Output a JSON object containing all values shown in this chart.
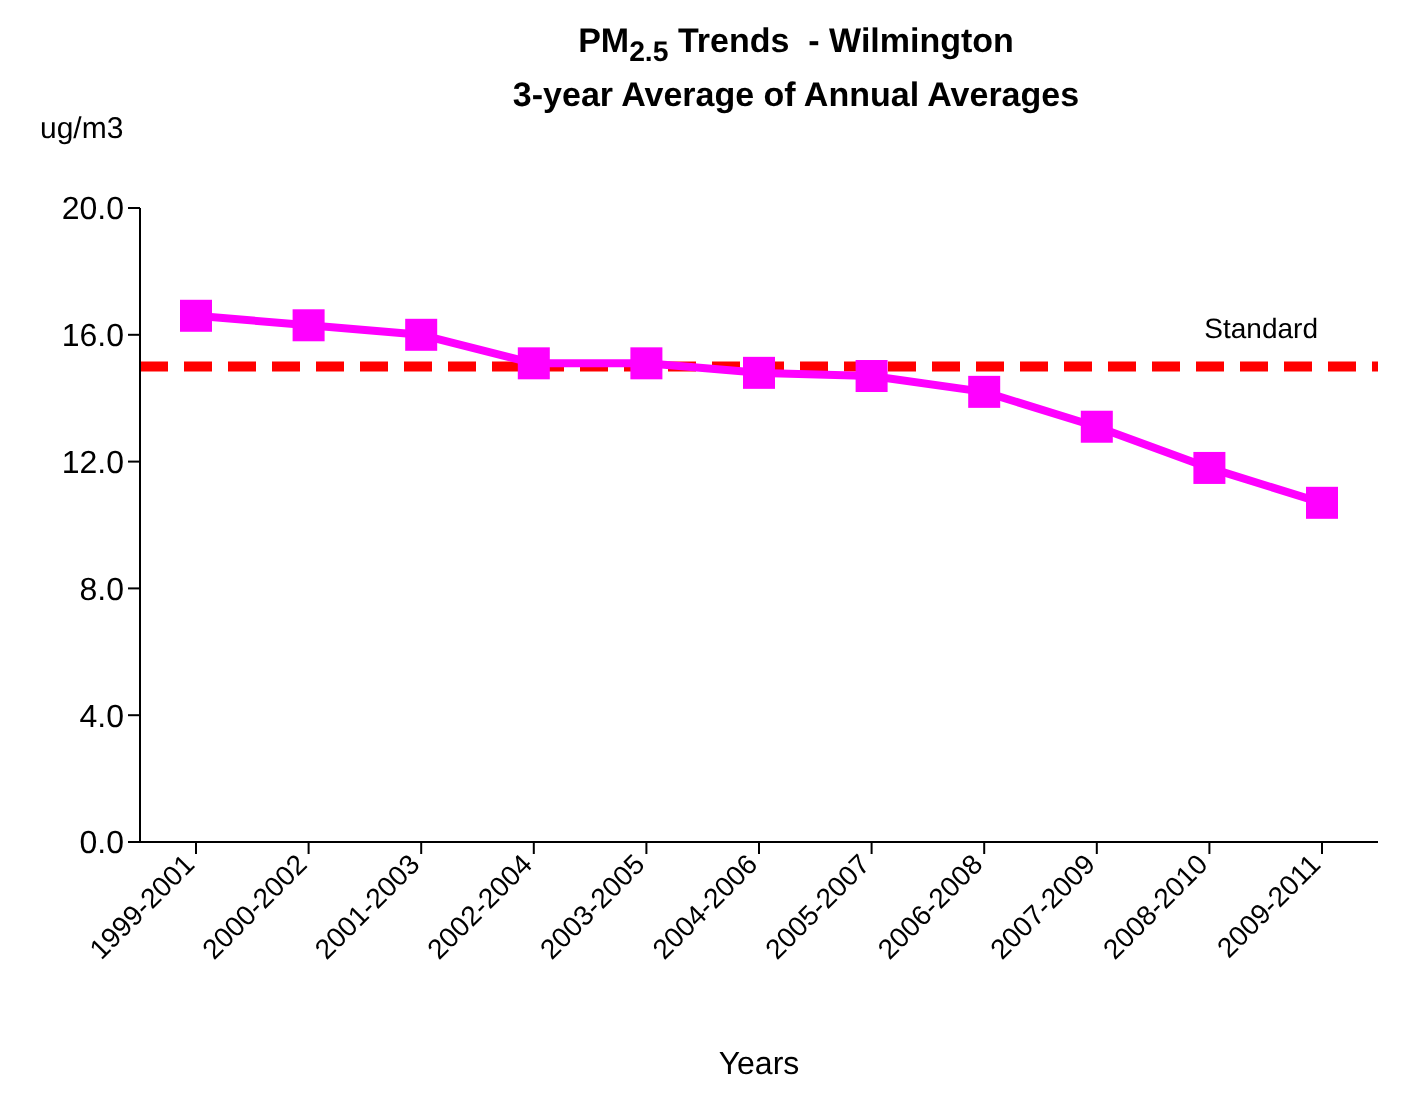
{
  "chart_data": {
    "type": "line",
    "title": "PM$_{2.5}$ Trends  - Wilmington",
    "subtitle": "3-year Average of Annual Averages",
    "ylabel": "ug/m3",
    "xlabel": "Years",
    "categories": [
      "1999-2001",
      "2000-2002",
      "2001-2003",
      "2002-2004",
      "2003-2005",
      "2004-2006",
      "2005-2007",
      "2006-2008",
      "2007-2009",
      "2008-2010",
      "2009-2011"
    ],
    "series": [
      {
        "color": "#ff00ff",
        "values": [
          16.6,
          16.3,
          16.0,
          15.1,
          15.1,
          14.8,
          14.7,
          14.2,
          13.1,
          11.8,
          10.7
        ]
      }
    ],
    "ylim": [
      0,
      20
    ],
    "yticks": [
      {
        "value": 0,
        "label": "0.0"
      },
      {
        "value": 4,
        "label": "4.0"
      },
      {
        "value": 8,
        "label": "8.0"
      },
      {
        "value": 12,
        "label": "12.0"
      },
      {
        "value": 16,
        "label": "16.0"
      },
      {
        "value": 20,
        "label": "20.0"
      }
    ],
    "ref_lines": [
      {
        "axis": "y",
        "value": 15,
        "label": "Standard",
        "color": "#ff0000",
        "line_style": "dashed"
      }
    ],
    "marker": "square",
    "line_style": "solid",
    "grid": false,
    "legend": false
  }
}
